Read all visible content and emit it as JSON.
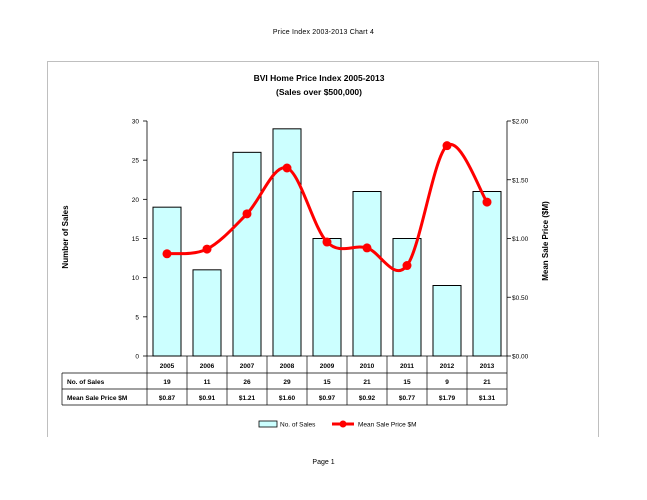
{
  "page": {
    "header": "Price Index 2003-2013 Chart 4",
    "footer": "Page 1"
  },
  "chart_data": {
    "type": "bar",
    "title": "BVI Home Price Index 2005-2013",
    "subtitle": "(Sales over $500,000)",
    "ylabel": "Number of Sales",
    "y2label": "Mean Sale Price ($M)",
    "categories": [
      "2005",
      "2006",
      "2007",
      "2008",
      "2009",
      "2010",
      "2011",
      "2012",
      "2013"
    ],
    "ylim": [
      0,
      30
    ],
    "yticks": [
      "0",
      "5",
      "10",
      "15",
      "20",
      "25",
      "30"
    ],
    "y2lim": [
      0,
      2.0
    ],
    "y2ticks": [
      "$0.00",
      "$0.50",
      "$1.00",
      "$1.50",
      "$2.00"
    ],
    "series": [
      {
        "name": "No. of Sales",
        "type": "bar",
        "axis": "left",
        "values": [
          19,
          11,
          26,
          29,
          15,
          21,
          15,
          9,
          21
        ],
        "color": "#ccffff"
      },
      {
        "name": "Mean Sale Price $M",
        "type": "line",
        "axis": "right",
        "smooth": true,
        "values": [
          0.87,
          0.91,
          1.21,
          1.6,
          0.97,
          0.92,
          0.77,
          1.79,
          1.31
        ],
        "color": "#ff0000"
      }
    ],
    "table": {
      "rows": [
        {
          "label": "No. of Sales",
          "cells": [
            "19",
            "11",
            "26",
            "29",
            "15",
            "21",
            "15",
            "9",
            "21"
          ]
        },
        {
          "label": "Mean Sale Price $M",
          "cells": [
            "$0.87",
            "$0.91",
            "$1.21",
            "$1.60",
            "$0.97",
            "$0.92",
            "$0.77",
            "$1.79",
            "$1.31"
          ]
        }
      ]
    },
    "legend_position": "bottom",
    "grid": false
  }
}
